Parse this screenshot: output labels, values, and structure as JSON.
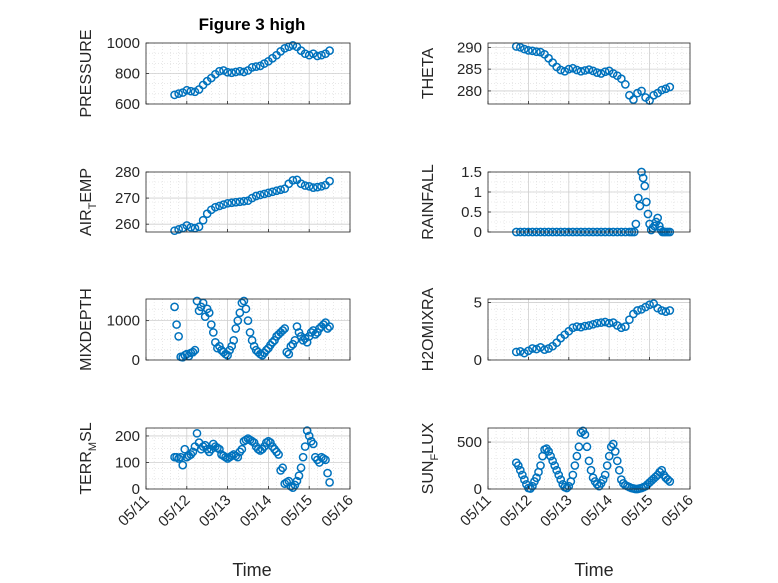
{
  "figure": {
    "title": "Figure 3 high",
    "xlabel": "Time"
  },
  "x_ticks": [
    "05/11",
    "05/12",
    "05/13",
    "05/14",
    "05/15",
    "05/16"
  ],
  "colors": {
    "marker": "#0072BD",
    "axis": "#262626",
    "grid": "#d9d9d9"
  },
  "chart_data": [
    {
      "type": "scatter",
      "ylabel": "PRESSURE",
      "ylim": [
        600,
        1000
      ],
      "yticks": [
        "600",
        "800",
        "1000"
      ],
      "x": [
        11.7,
        11.8,
        11.9,
        12.0,
        12.1,
        12.2,
        12.3,
        12.4,
        12.5,
        12.6,
        12.7,
        12.8,
        12.9,
        13.0,
        13.1,
        13.2,
        13.3,
        13.4,
        13.5,
        13.6,
        13.7,
        13.8,
        13.9,
        14.0,
        14.1,
        14.2,
        14.3,
        14.4,
        14.5,
        14.6,
        14.7,
        14.8,
        14.9,
        15.0,
        15.1,
        15.2,
        15.3,
        15.4,
        15.5
      ],
      "y": [
        660,
        668,
        675,
        690,
        684,
        680,
        695,
        725,
        750,
        770,
        795,
        815,
        820,
        808,
        805,
        810,
        815,
        810,
        820,
        840,
        845,
        850,
        865,
        880,
        900,
        920,
        945,
        965,
        975,
        985,
        975,
        950,
        930,
        920,
        930,
        915,
        920,
        930,
        950
      ]
    },
    {
      "type": "scatter",
      "ylabel": "THETA",
      "ylim": [
        277,
        291
      ],
      "yticks": [
        "280",
        "285",
        "290"
      ],
      "x": [
        11.7,
        11.8,
        11.9,
        12.0,
        12.1,
        12.2,
        12.3,
        12.4,
        12.5,
        12.6,
        12.7,
        12.8,
        12.9,
        13.0,
        13.1,
        13.2,
        13.3,
        13.4,
        13.5,
        13.6,
        13.7,
        13.8,
        13.9,
        14.0,
        14.1,
        14.2,
        14.3,
        14.4,
        14.5,
        14.6,
        14.7,
        14.8,
        14.9,
        15.0,
        15.1,
        15.2,
        15.3,
        15.4,
        15.5
      ],
      "y": [
        290.2,
        290.0,
        289.6,
        289.3,
        289.2,
        289.0,
        288.9,
        288.4,
        287.5,
        286.5,
        285.5,
        284.8,
        284.5,
        285.0,
        285.2,
        284.8,
        284.5,
        284.7,
        284.9,
        284.6,
        284.2,
        284.0,
        284.4,
        284.6,
        284.0,
        283.5,
        282.8,
        281.5,
        279.0,
        278.0,
        279.5,
        280.0,
        278.5,
        277.8,
        279.0,
        279.5,
        280.2,
        280.5,
        280.9
      ]
    },
    {
      "type": "scatter",
      "ylabel": "AIR_TEMP",
      "ylim": [
        257,
        280
      ],
      "yticks": [
        "260",
        "270",
        "280"
      ],
      "x": [
        11.7,
        11.8,
        11.9,
        12.0,
        12.1,
        12.2,
        12.3,
        12.4,
        12.5,
        12.6,
        12.7,
        12.8,
        12.9,
        13.0,
        13.1,
        13.2,
        13.3,
        13.4,
        13.5,
        13.6,
        13.7,
        13.8,
        13.9,
        14.0,
        14.1,
        14.2,
        14.3,
        14.4,
        14.5,
        14.6,
        14.7,
        14.8,
        14.9,
        15.0,
        15.1,
        15.2,
        15.3,
        15.4,
        15.5
      ],
      "y": [
        257.5,
        258.0,
        258.5,
        259.5,
        258.8,
        258.5,
        259.0,
        261.5,
        264.0,
        265.5,
        266.5,
        267.0,
        267.5,
        268.0,
        268.2,
        268.4,
        268.6,
        268.8,
        269.0,
        270.0,
        270.8,
        271.2,
        271.6,
        272.0,
        272.4,
        272.8,
        273.2,
        273.6,
        275.5,
        276.8,
        277.0,
        275.5,
        274.8,
        274.5,
        274.0,
        274.2,
        274.5,
        275.0,
        276.5
      ]
    },
    {
      "type": "scatter",
      "ylabel": "RAINFALL",
      "ylim": [
        0,
        1.5
      ],
      "yticks": [
        "0",
        "0.5",
        "1",
        "1.5"
      ],
      "x": [
        11.7,
        11.8,
        11.9,
        12.0,
        12.1,
        12.2,
        12.3,
        12.4,
        12.5,
        12.6,
        12.7,
        12.8,
        12.9,
        13.0,
        13.1,
        13.2,
        13.3,
        13.4,
        13.5,
        13.6,
        13.7,
        13.8,
        13.9,
        14.0,
        14.1,
        14.2,
        14.3,
        14.4,
        14.5,
        14.56,
        14.62,
        14.66,
        14.72,
        14.76,
        14.8,
        14.84,
        14.88,
        14.92,
        14.96,
        15.0,
        15.04,
        15.08,
        15.12,
        15.16,
        15.2,
        15.24,
        15.28,
        15.32,
        15.36,
        15.4,
        15.45,
        15.5
      ],
      "y": [
        0,
        0,
        0,
        0,
        0,
        0,
        0,
        0,
        0,
        0,
        0,
        0,
        0,
        0,
        0,
        0,
        0,
        0,
        0,
        0,
        0,
        0,
        0,
        0,
        0,
        0,
        0,
        0,
        0,
        0,
        0,
        0.2,
        0.85,
        0.65,
        1.5,
        1.35,
        1.15,
        0.75,
        0.45,
        0.2,
        0.05,
        0.1,
        0.15,
        0.25,
        0.35,
        0.15,
        0.05,
        0,
        0,
        0,
        0,
        0
      ]
    },
    {
      "type": "scatter",
      "ylabel": "MIXDEPTH",
      "ylim": [
        0,
        1550
      ],
      "yticks": [
        "0",
        "1000"
      ],
      "x": [
        11.7,
        11.75,
        11.8,
        11.85,
        11.9,
        11.95,
        12.0,
        12.05,
        12.1,
        12.15,
        12.2,
        12.25,
        12.3,
        12.35,
        12.4,
        12.45,
        12.5,
        12.55,
        12.6,
        12.65,
        12.7,
        12.75,
        12.8,
        12.85,
        12.9,
        12.95,
        13.0,
        13.05,
        13.1,
        13.15,
        13.2,
        13.25,
        13.3,
        13.35,
        13.4,
        13.45,
        13.5,
        13.55,
        13.6,
        13.65,
        13.7,
        13.75,
        13.8,
        13.85,
        13.9,
        13.95,
        14.0,
        14.05,
        14.1,
        14.15,
        14.2,
        14.25,
        14.3,
        14.35,
        14.4,
        14.45,
        14.5,
        14.55,
        14.6,
        14.65,
        14.7,
        14.75,
        14.8,
        14.85,
        14.9,
        14.95,
        15.0,
        15.05,
        15.1,
        15.15,
        15.2,
        15.25,
        15.3,
        15.35,
        15.4,
        15.45,
        15.5
      ],
      "y": [
        1350,
        900,
        600,
        80,
        70,
        120,
        150,
        100,
        180,
        200,
        250,
        1500,
        1250,
        1350,
        1450,
        1100,
        1300,
        1200,
        900,
        700,
        450,
        300,
        350,
        250,
        200,
        150,
        120,
        250,
        350,
        500,
        800,
        1000,
        1200,
        1450,
        1500,
        1300,
        1000,
        700,
        500,
        350,
        250,
        200,
        150,
        120,
        180,
        250,
        300,
        380,
        450,
        500,
        600,
        650,
        700,
        750,
        800,
        200,
        150,
        350,
        400,
        500,
        850,
        700,
        600,
        500,
        550,
        450,
        600,
        700,
        750,
        650,
        700,
        800,
        850,
        900,
        950,
        800,
        850
      ]
    },
    {
      "type": "scatter",
      "ylabel": "H2OMIXRA",
      "ylim": [
        0,
        5.3
      ],
      "yticks": [
        "0",
        "5"
      ],
      "x": [
        11.7,
        11.8,
        11.9,
        12.0,
        12.1,
        12.2,
        12.3,
        12.4,
        12.5,
        12.6,
        12.7,
        12.8,
        12.9,
        13.0,
        13.1,
        13.2,
        13.3,
        13.4,
        13.5,
        13.6,
        13.7,
        13.8,
        13.9,
        14.0,
        14.1,
        14.2,
        14.3,
        14.4,
        14.5,
        14.6,
        14.7,
        14.8,
        14.9,
        15.0,
        15.1,
        15.2,
        15.3,
        15.4,
        15.5
      ],
      "y": [
        0.7,
        0.75,
        0.6,
        0.8,
        1.0,
        0.95,
        1.1,
        0.9,
        1.0,
        1.2,
        1.5,
        1.9,
        2.2,
        2.5,
        2.8,
        2.9,
        2.85,
        2.95,
        3.0,
        3.1,
        3.2,
        3.25,
        3.3,
        3.2,
        3.25,
        3.0,
        2.8,
        2.9,
        3.5,
        4.0,
        4.3,
        4.4,
        4.6,
        4.8,
        4.9,
        4.5,
        4.3,
        4.2,
        4.3
      ]
    },
    {
      "type": "scatter",
      "ylabel": "TERR_MSL",
      "ylim": [
        0,
        230
      ],
      "yticks": [
        "0",
        "100",
        "200"
      ],
      "x": [
        11.7,
        11.75,
        11.8,
        11.85,
        11.9,
        11.95,
        12.0,
        12.05,
        12.1,
        12.15,
        12.2,
        12.25,
        12.3,
        12.35,
        12.4,
        12.45,
        12.5,
        12.55,
        12.6,
        12.65,
        12.7,
        12.75,
        12.8,
        12.85,
        12.9,
        12.95,
        13.0,
        13.05,
        13.1,
        13.15,
        13.2,
        13.25,
        13.3,
        13.35,
        13.4,
        13.45,
        13.5,
        13.55,
        13.6,
        13.65,
        13.7,
        13.75,
        13.8,
        13.85,
        13.9,
        13.95,
        14.0,
        14.05,
        14.1,
        14.15,
        14.2,
        14.25,
        14.3,
        14.35,
        14.4,
        14.45,
        14.5,
        14.55,
        14.6,
        14.65,
        14.7,
        14.75,
        14.8,
        14.85,
        14.9,
        14.95,
        15.0,
        15.05,
        15.1,
        15.15,
        15.2,
        15.25,
        15.3,
        15.35,
        15.4,
        15.45,
        15.5
      ],
      "y": [
        120,
        120,
        115,
        120,
        90,
        150,
        120,
        125,
        130,
        140,
        160,
        210,
        175,
        150,
        160,
        165,
        150,
        140,
        150,
        170,
        160,
        155,
        150,
        130,
        125,
        120,
        115,
        120,
        125,
        130,
        125,
        120,
        140,
        150,
        180,
        185,
        190,
        185,
        180,
        175,
        160,
        150,
        145,
        150,
        160,
        175,
        180,
        175,
        160,
        150,
        140,
        130,
        70,
        80,
        20,
        25,
        30,
        10,
        5,
        15,
        30,
        50,
        80,
        120,
        160,
        220,
        200,
        180,
        170,
        120,
        110,
        100,
        120,
        115,
        110,
        60,
        25
      ]
    },
    {
      "type": "scatter",
      "ylabel": "SUN_FLUX",
      "ylim": [
        0,
        650
      ],
      "yticks": [
        "0",
        "500"
      ],
      "x": [
        11.7,
        11.75,
        11.8,
        11.85,
        11.9,
        11.95,
        12.0,
        12.05,
        12.1,
        12.15,
        12.2,
        12.25,
        12.3,
        12.35,
        12.4,
        12.45,
        12.5,
        12.55,
        12.6,
        12.65,
        12.7,
        12.75,
        12.8,
        12.85,
        12.9,
        12.95,
        13.0,
        13.05,
        13.1,
        13.15,
        13.2,
        13.25,
        13.3,
        13.35,
        13.4,
        13.45,
        13.5,
        13.55,
        13.6,
        13.65,
        13.7,
        13.75,
        13.8,
        13.85,
        13.9,
        13.95,
        14.0,
        14.05,
        14.1,
        14.15,
        14.2,
        14.25,
        14.3,
        14.35,
        14.4,
        14.45,
        14.5,
        14.55,
        14.6,
        14.65,
        14.7,
        14.75,
        14.8,
        14.85,
        14.9,
        14.95,
        15.0,
        15.05,
        15.1,
        15.15,
        15.2,
        15.25,
        15.3,
        15.35,
        15.4,
        15.45,
        15.5
      ],
      "y": [
        280,
        250,
        200,
        150,
        100,
        50,
        10,
        5,
        30,
        80,
        120,
        180,
        250,
        350,
        420,
        430,
        400,
        350,
        300,
        250,
        200,
        150,
        100,
        50,
        20,
        10,
        30,
        80,
        150,
        250,
        350,
        450,
        600,
        620,
        580,
        450,
        300,
        200,
        120,
        80,
        50,
        30,
        60,
        100,
        150,
        250,
        350,
        450,
        480,
        400,
        300,
        200,
        100,
        60,
        40,
        30,
        20,
        10,
        5,
        0,
        0,
        5,
        10,
        20,
        30,
        50,
        70,
        90,
        110,
        130,
        150,
        180,
        200,
        150,
        120,
        100,
        80
      ]
    }
  ]
}
